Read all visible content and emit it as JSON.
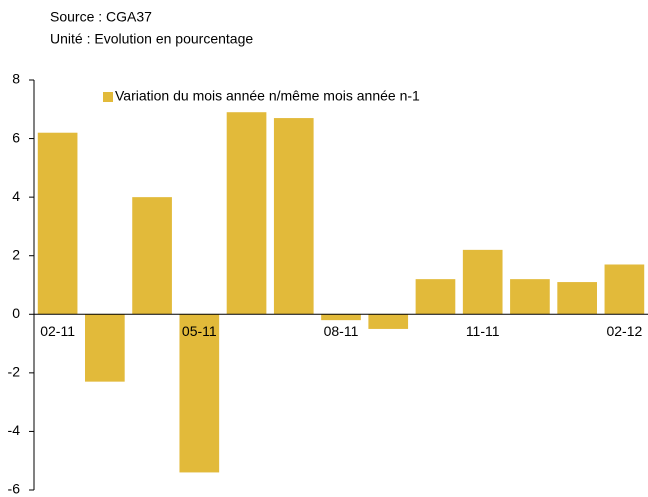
{
  "chart_data": {
    "type": "bar",
    "source": "Source : CGA37",
    "unit": "Unité : Evolution en pourcentage",
    "categories": [
      "02-11",
      null,
      null,
      "05-11",
      null,
      null,
      "08-11",
      null,
      null,
      "11-11",
      null,
      null,
      "02-12"
    ],
    "series": [
      {
        "name": "Variation du mois année n/même mois année n-1",
        "color": "#e2ba3a",
        "values": [
          6.2,
          -2.3,
          4.0,
          -5.4,
          6.9,
          6.7,
          -0.2,
          -0.5,
          1.2,
          2.2,
          1.2,
          1.1,
          1.7
        ]
      }
    ],
    "ylim": [
      -6,
      8
    ],
    "yticks": [
      -6,
      -4,
      -2,
      0,
      2,
      4,
      6,
      8
    ],
    "legend": "top"
  }
}
